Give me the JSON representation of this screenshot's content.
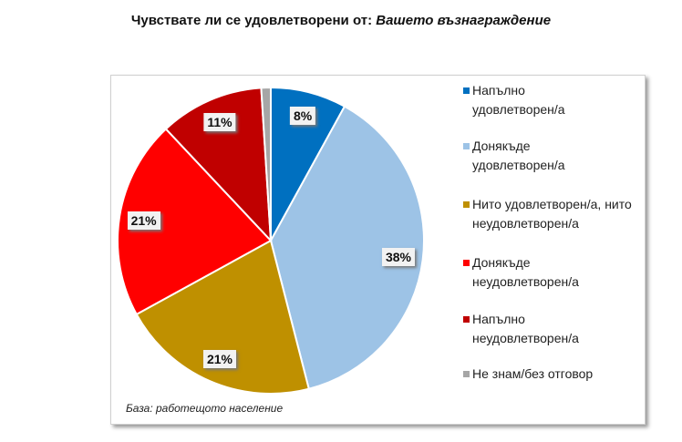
{
  "title_prefix": "Чувствате ли се удовлетворени от: ",
  "title_italic": "Вашето възнаграждение",
  "footnote": "База: работещото население",
  "chart_data": {
    "type": "pie",
    "title": "Чувствате ли се удовлетворени от: Вашето възнаграждение",
    "categories": [
      "Напълно удовлетворен/а",
      "Донякъде удовлетворен/а",
      "Нито удовлетворен/а, нито неудовлетворен/а",
      "Донякъде неудовлетворен/а",
      "Напълно неудовлетворен/а",
      "Не знам/без отговор"
    ],
    "values": [
      8,
      38,
      21,
      21,
      11,
      1
    ],
    "data_labels": [
      "8%",
      "38%",
      "21%",
      "21%",
      "11%",
      ""
    ],
    "colors": [
      "#0070c0",
      "#9dc3e6",
      "#bf9000",
      "#ff0000",
      "#c00000",
      "#a6a6a6"
    ],
    "legend_position": "right",
    "start": "top-clockwise"
  }
}
